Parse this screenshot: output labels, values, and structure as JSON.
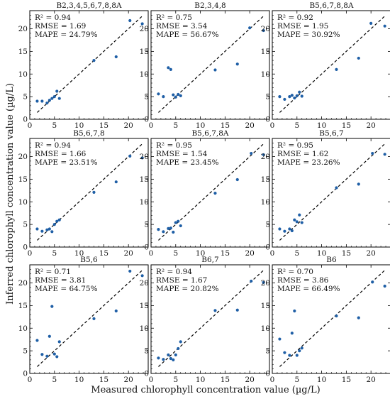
{
  "figure": {
    "xlabel": "Measured chlorophyll concentration value (µg/L)",
    "ylabel": "Inferred chlorophyll concentration value (µg/L)"
  },
  "chart_data": [
    {
      "type": "scatter",
      "title": "B2,3,4,5,6,7,8,8A",
      "stats": {
        "r2": "R² = 0.94",
        "rmse": "RMSE = 1.69",
        "mape": "MAPE = 24.79%"
      },
      "xlim": [
        0,
        24
      ],
      "ylim": [
        0,
        24
      ],
      "xticks": [
        0,
        5,
        10,
        15,
        20
      ],
      "yticks": [
        0,
        5,
        10,
        15,
        20
      ],
      "points": [
        [
          1.5,
          4
        ],
        [
          2.5,
          4
        ],
        [
          3.5,
          3.6
        ],
        [
          4,
          4.2
        ],
        [
          4.5,
          4.6
        ],
        [
          5,
          5
        ],
        [
          5.5,
          6.2
        ],
        [
          6,
          4.6
        ],
        [
          13,
          13
        ],
        [
          17.5,
          13.8
        ],
        [
          20.3,
          21.8
        ],
        [
          22.8,
          21.1
        ]
      ]
    },
    {
      "type": "scatter",
      "title": "B2,3,4,8",
      "stats": {
        "r2": "R² = 0.75",
        "rmse": "RMSE = 3.54",
        "mape": "MAPE = 56.67%"
      },
      "xlim": [
        0,
        24
      ],
      "ylim": [
        0,
        24
      ],
      "xticks": [
        0,
        5,
        10,
        15,
        20
      ],
      "yticks": [
        0,
        5,
        10,
        15,
        20
      ],
      "points": [
        [
          1.5,
          5.6
        ],
        [
          2.5,
          5
        ],
        [
          3.5,
          11.4
        ],
        [
          4,
          11
        ],
        [
          4.5,
          5.4
        ],
        [
          5,
          4.9
        ],
        [
          5.5,
          5.5
        ],
        [
          6,
          5.2
        ],
        [
          13,
          10.9
        ],
        [
          17.5,
          12.2
        ],
        [
          20,
          20.2
        ],
        [
          22.8,
          19.6
        ]
      ]
    },
    {
      "type": "scatter",
      "title": "B5,6,7,8,8A",
      "stats": {
        "r2": "R² = 0.92",
        "rmse": "RMSE = 1.95",
        "mape": "MAPE = 30.92%"
      },
      "xlim": [
        0,
        24
      ],
      "ylim": [
        0,
        24
      ],
      "xticks": [
        0,
        5,
        10,
        15,
        20
      ],
      "yticks": [
        0,
        5,
        10,
        15,
        20
      ],
      "points": [
        [
          1.5,
          5
        ],
        [
          2.5,
          4.4
        ],
        [
          3.5,
          5
        ],
        [
          4,
          5.3
        ],
        [
          4.5,
          4.7
        ],
        [
          5,
          5.2
        ],
        [
          5.5,
          6
        ],
        [
          6,
          5.1
        ],
        [
          13,
          11
        ],
        [
          17.5,
          13.5
        ],
        [
          20,
          21.2
        ],
        [
          22.8,
          20.6
        ]
      ]
    },
    {
      "type": "scatter",
      "title": "B5,6,7,8",
      "stats": {
        "r2": "R² = 0.94",
        "rmse": "RMSE = 1.66",
        "mape": "MAPE = 23.51%"
      },
      "xlim": [
        0,
        24
      ],
      "ylim": [
        0,
        24
      ],
      "xticks": [
        0,
        5,
        10,
        15,
        20
      ],
      "yticks": [
        0,
        5,
        10,
        15,
        20
      ],
      "points": [
        [
          1.5,
          4
        ],
        [
          2.5,
          3.5
        ],
        [
          3.5,
          3.8
        ],
        [
          4,
          4
        ],
        [
          4.5,
          3.4
        ],
        [
          5,
          5
        ],
        [
          5.5,
          5.7
        ],
        [
          6,
          6
        ],
        [
          13,
          12.1
        ],
        [
          17.5,
          14.4
        ],
        [
          20.3,
          20.1
        ],
        [
          22.8,
          19.7
        ]
      ]
    },
    {
      "type": "scatter",
      "title": "B5,6,7,8A",
      "stats": {
        "r2": "R² = 0.95",
        "rmse": "RMSE = 1.54",
        "mape": "MAPE = 23.45%"
      },
      "xlim": [
        0,
        24
      ],
      "ylim": [
        0,
        24
      ],
      "xticks": [
        0,
        5,
        10,
        15,
        20
      ],
      "yticks": [
        0,
        5,
        10,
        15,
        20
      ],
      "points": [
        [
          1.5,
          3.9
        ],
        [
          2.5,
          3.4
        ],
        [
          3.5,
          4.1
        ],
        [
          4,
          4.2
        ],
        [
          4.5,
          3.3
        ],
        [
          5,
          5.4
        ],
        [
          5.5,
          5.7
        ],
        [
          6,
          4.7
        ],
        [
          13,
          11.9
        ],
        [
          17.5,
          14.9
        ],
        [
          20.3,
          20.7
        ],
        [
          22.8,
          20.4
        ]
      ]
    },
    {
      "type": "scatter",
      "title": "B5,6,7",
      "stats": {
        "r2": "R² = 0.95",
        "rmse": "RMSE = 1.62",
        "mape": "MAPE = 23.26%"
      },
      "xlim": [
        0,
        24
      ],
      "ylim": [
        0,
        24
      ],
      "xticks": [
        0,
        5,
        10,
        15,
        20
      ],
      "yticks": [
        0,
        5,
        10,
        15,
        20
      ],
      "points": [
        [
          1.5,
          4
        ],
        [
          2.5,
          3.5
        ],
        [
          3.5,
          4
        ],
        [
          4,
          3.6
        ],
        [
          4.5,
          6
        ],
        [
          5,
          5.6
        ],
        [
          5.5,
          7.1
        ],
        [
          6,
          5.4
        ],
        [
          13,
          13.1
        ],
        [
          17.5,
          13.9
        ],
        [
          20.3,
          20.7
        ],
        [
          22.8,
          20.5
        ]
      ]
    },
    {
      "type": "scatter",
      "title": "B5,6",
      "stats": {
        "r2": "R² = 0.71",
        "rmse": "RMSE = 3.81",
        "mape": "MAPE = 64.75%"
      },
      "xlim": [
        0,
        24
      ],
      "ylim": [
        0,
        24
      ],
      "xticks": [
        0,
        5,
        10,
        15,
        20
      ],
      "yticks": [
        0,
        5,
        10,
        15,
        20
      ],
      "points": [
        [
          1.5,
          7.3
        ],
        [
          2.5,
          4.2
        ],
        [
          3.5,
          3.8
        ],
        [
          4,
          8.2
        ],
        [
          4.5,
          14.8
        ],
        [
          5,
          4.3
        ],
        [
          5.5,
          3.7
        ],
        [
          6,
          7
        ],
        [
          13,
          12.1
        ],
        [
          17.5,
          13.8
        ],
        [
          20.3,
          22.6
        ],
        [
          22.8,
          21.6
        ]
      ]
    },
    {
      "type": "scatter",
      "title": "B6,7",
      "stats": {
        "r2": "R² = 0.94",
        "rmse": "RMSE = 1.67",
        "mape": "MAPE = 20.82%"
      },
      "xlim": [
        0,
        24
      ],
      "ylim": [
        0,
        24
      ],
      "xticks": [
        0,
        5,
        10,
        15,
        20
      ],
      "yticks": [
        0,
        5,
        10,
        15,
        20
      ],
      "points": [
        [
          1.5,
          3.4
        ],
        [
          2.5,
          3.1
        ],
        [
          3.5,
          4.1
        ],
        [
          4,
          3.3
        ],
        [
          4.5,
          3
        ],
        [
          5,
          4.1
        ],
        [
          5.5,
          5.5
        ],
        [
          6,
          7
        ],
        [
          13,
          13.9
        ],
        [
          17.5,
          14
        ],
        [
          20.3,
          20.4
        ],
        [
          22.8,
          20.1
        ]
      ]
    },
    {
      "type": "scatter",
      "title": "B6",
      "stats": {
        "r2": "R² = 0.70",
        "rmse": "RMSE = 3.86",
        "mape": "MAPE = 66.49%"
      },
      "xlim": [
        0,
        24
      ],
      "ylim": [
        0,
        24
      ],
      "xticks": [
        0,
        5,
        10,
        15,
        20
      ],
      "yticks": [
        0,
        5,
        10,
        15,
        20
      ],
      "points": [
        [
          1.5,
          7.6
        ],
        [
          2.5,
          4.6
        ],
        [
          3.5,
          4
        ],
        [
          4,
          8.9
        ],
        [
          4.5,
          13.8
        ],
        [
          5,
          4
        ],
        [
          5.5,
          5
        ],
        [
          6,
          5.6
        ],
        [
          13,
          12.7
        ],
        [
          17.5,
          12.3
        ],
        [
          20.3,
          20.2
        ],
        [
          22.8,
          19.3
        ]
      ]
    }
  ],
  "colors": {
    "points": "#1f5fa6",
    "axes": "#000000",
    "refline": "#000000"
  }
}
